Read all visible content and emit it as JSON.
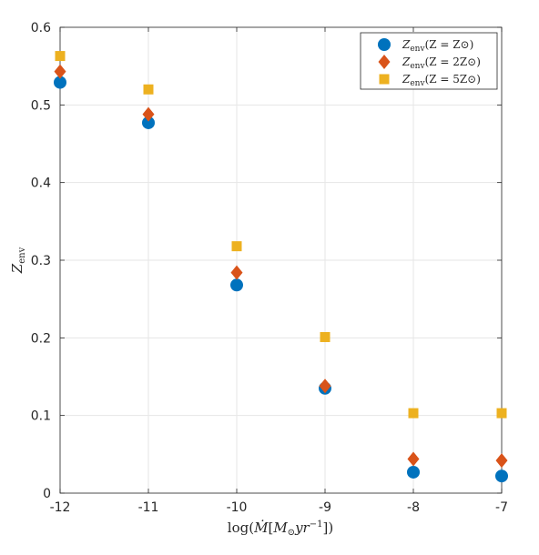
{
  "chart_data": {
    "type": "scatter",
    "title": "",
    "xlabel": "log(Ṁ[M⊙yr⁻¹])",
    "ylabel": "Z_env",
    "xlim": [
      -12,
      -7
    ],
    "ylim": [
      0,
      0.6
    ],
    "grid": true,
    "legend_position": "top-right",
    "x": [
      -12,
      -11,
      -10,
      -9,
      -8,
      -7
    ],
    "x_ticks": [
      "-12",
      "-11",
      "-10",
      "-9",
      "-8",
      "-7"
    ],
    "y_ticks": [
      "0",
      "0.1",
      "0.2",
      "0.3",
      "0.4",
      "0.5",
      "0.6"
    ],
    "series": [
      {
        "name": "Z_env(Z = Z⊙)",
        "marker": "circle",
        "color": "#0072BD",
        "y": [
          0.529,
          0.477,
          0.268,
          0.135,
          0.027,
          0.022
        ]
      },
      {
        "name": "Z_env(Z = 2Z⊙)",
        "marker": "diamond",
        "color": "#D95319",
        "y": [
          0.543,
          0.488,
          0.284,
          0.138,
          0.044,
          0.042
        ]
      },
      {
        "name": "Z_env(Z = 5Z⊙)",
        "marker": "square",
        "color": "#EDB120",
        "y": [
          0.563,
          0.52,
          0.318,
          0.201,
          0.103,
          0.103
        ]
      }
    ]
  }
}
